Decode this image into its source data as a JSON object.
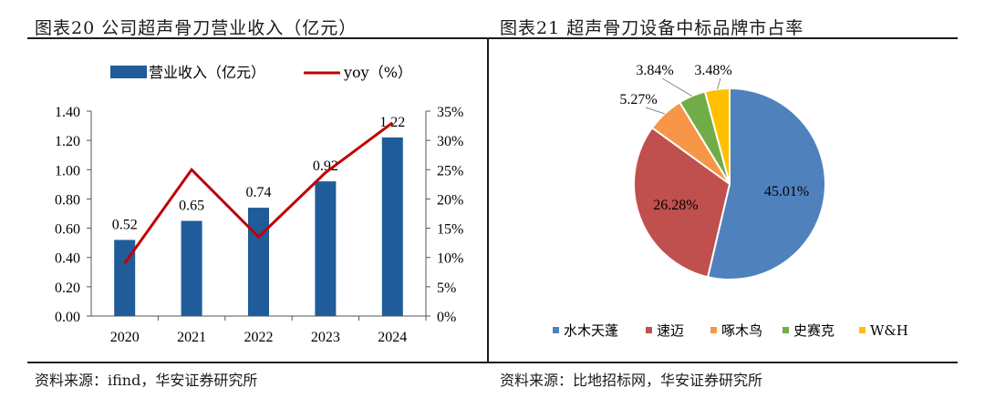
{
  "left_panel": {
    "title": "图表20 公司超声骨刀营业收入（亿元）",
    "source": "资料来源：ifind，华安证券研究所"
  },
  "right_panel": {
    "title": "图表21 超声骨刀设备中标品牌市占率",
    "source": "资料来源：比地招标网，华安证券研究所"
  },
  "chart_data": [
    {
      "type": "bar+line",
      "title": "公司超声骨刀营业收入（亿元）",
      "categories": [
        "2020",
        "2021",
        "2022",
        "2023",
        "2024"
      ],
      "series": [
        {
          "name": "营业收入（亿元）",
          "kind": "bar",
          "axis": "left",
          "values": [
            0.52,
            0.65,
            0.74,
            0.92,
            1.22
          ],
          "labels": [
            "0.52",
            "0.65",
            "0.74",
            "0.92",
            "1.22"
          ],
          "color": "#1f5c99"
        },
        {
          "name": "yoy（%）",
          "kind": "line",
          "axis": "right",
          "values": [
            9,
            25,
            13.5,
            24.5,
            33
          ],
          "color": "#c00000"
        }
      ],
      "y_left": {
        "min": 0,
        "max": 1.4,
        "ticks": [
          "0.00",
          "0.20",
          "0.40",
          "0.60",
          "0.80",
          "1.00",
          "1.20",
          "1.40"
        ]
      },
      "y_right": {
        "min": 0,
        "max": 35,
        "ticks": [
          "0%",
          "5%",
          "10%",
          "15%",
          "20%",
          "25%",
          "30%",
          "35%"
        ]
      },
      "legend_position": "top"
    },
    {
      "type": "pie",
      "title": "超声骨刀设备中标品牌市占率",
      "slices": [
        {
          "name": "水木天蓬",
          "value": 45.01,
          "label": "45.01%",
          "color": "#4f81bd"
        },
        {
          "name": "速迈",
          "value": 26.28,
          "label": "26.28%",
          "color": "#c0504d"
        },
        {
          "name": "啄木鸟",
          "value": 5.27,
          "label": "5.27%",
          "color": "#f79646"
        },
        {
          "name": "史赛克",
          "value": 3.84,
          "label": "3.84%",
          "color": "#70ad47"
        },
        {
          "name": "W&H",
          "value": 3.48,
          "label": "3.48%",
          "color": "#ffc000"
        }
      ],
      "legend_position": "bottom"
    }
  ]
}
